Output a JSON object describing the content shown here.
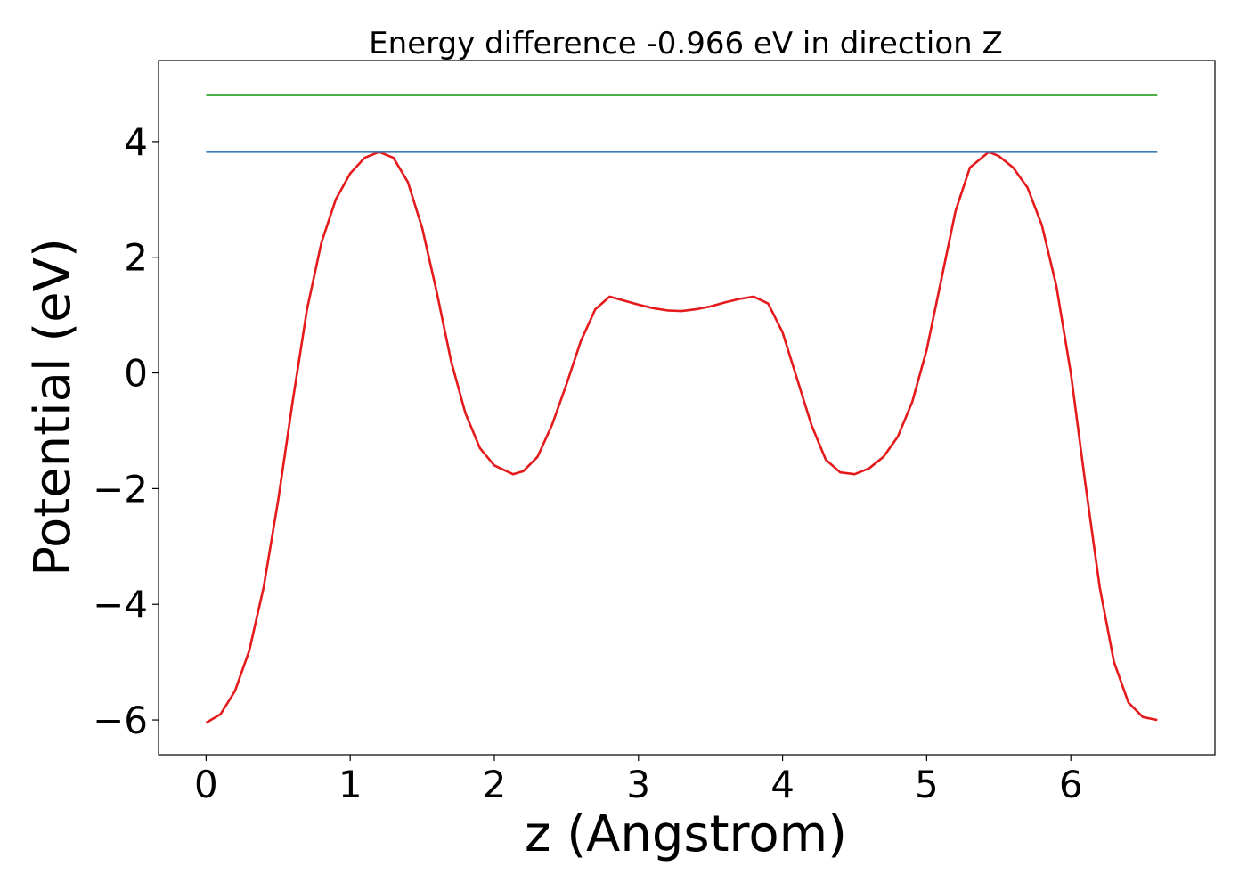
{
  "chart_data": {
    "type": "line",
    "title": "Energy difference -0.966 eV in direction Z",
    "xlabel": "z (Angstrom)",
    "ylabel": "Potential (eV)",
    "xlim": [
      -0.33,
      7.0
    ],
    "ylim": [
      -6.6,
      5.4
    ],
    "xticks": [
      0,
      1,
      2,
      3,
      4,
      5,
      6
    ],
    "yticks": [
      -6,
      -4,
      -2,
      0,
      2,
      4
    ],
    "xtick_labels": [
      "0",
      "1",
      "2",
      "3",
      "4",
      "5",
      "6"
    ],
    "ytick_labels": [
      "−6",
      "−4",
      "−2",
      "0",
      "2",
      "4"
    ],
    "grid": false,
    "series": [
      {
        "color": "#e41a1c",
        "x": [
          0.0,
          0.1,
          0.2,
          0.3,
          0.4,
          0.5,
          0.6,
          0.7,
          0.8,
          0.9,
          1.0,
          1.1,
          1.2,
          1.3,
          1.4,
          1.5,
          1.6,
          1.7,
          1.8,
          1.9,
          2.0,
          2.13,
          2.2,
          2.3,
          2.4,
          2.5,
          2.6,
          2.7,
          2.8,
          2.9,
          3.0,
          3.1,
          3.2,
          3.3,
          3.4,
          3.5,
          3.6,
          3.7,
          3.8,
          3.9,
          4.0,
          4.1,
          4.2,
          4.3,
          4.4,
          4.5,
          4.6,
          4.7,
          4.8,
          4.9,
          5.0,
          5.1,
          5.2,
          5.3,
          5.43,
          5.5,
          5.6,
          5.7,
          5.8,
          5.9,
          6.0,
          6.1,
          6.2,
          6.3,
          6.4,
          6.5,
          6.6
        ],
        "y": [
          -6.05,
          -5.9,
          -5.5,
          -4.8,
          -3.7,
          -2.2,
          -0.5,
          1.1,
          2.25,
          3.0,
          3.45,
          3.72,
          3.82,
          3.72,
          3.3,
          2.5,
          1.4,
          0.2,
          -0.7,
          -1.3,
          -1.6,
          -1.75,
          -1.7,
          -1.45,
          -0.9,
          -0.2,
          0.55,
          1.1,
          1.32,
          1.25,
          1.18,
          1.12,
          1.08,
          1.07,
          1.1,
          1.15,
          1.22,
          1.28,
          1.32,
          1.2,
          0.7,
          -0.1,
          -0.9,
          -1.5,
          -1.72,
          -1.75,
          -1.65,
          -1.45,
          -1.1,
          -0.5,
          0.4,
          1.6,
          2.8,
          3.55,
          3.82,
          3.75,
          3.55,
          3.2,
          2.55,
          1.5,
          0.0,
          -1.9,
          -3.7,
          -5.0,
          -5.7,
          -5.95,
          -6.0
        ]
      },
      {
        "color": "#377eb8",
        "x": [
          0.0,
          6.6
        ],
        "y": [
          3.82,
          3.82
        ]
      },
      {
        "color": "#4daf4a",
        "x": [
          0.0,
          6.6
        ],
        "y": [
          4.8,
          4.8
        ]
      }
    ]
  }
}
